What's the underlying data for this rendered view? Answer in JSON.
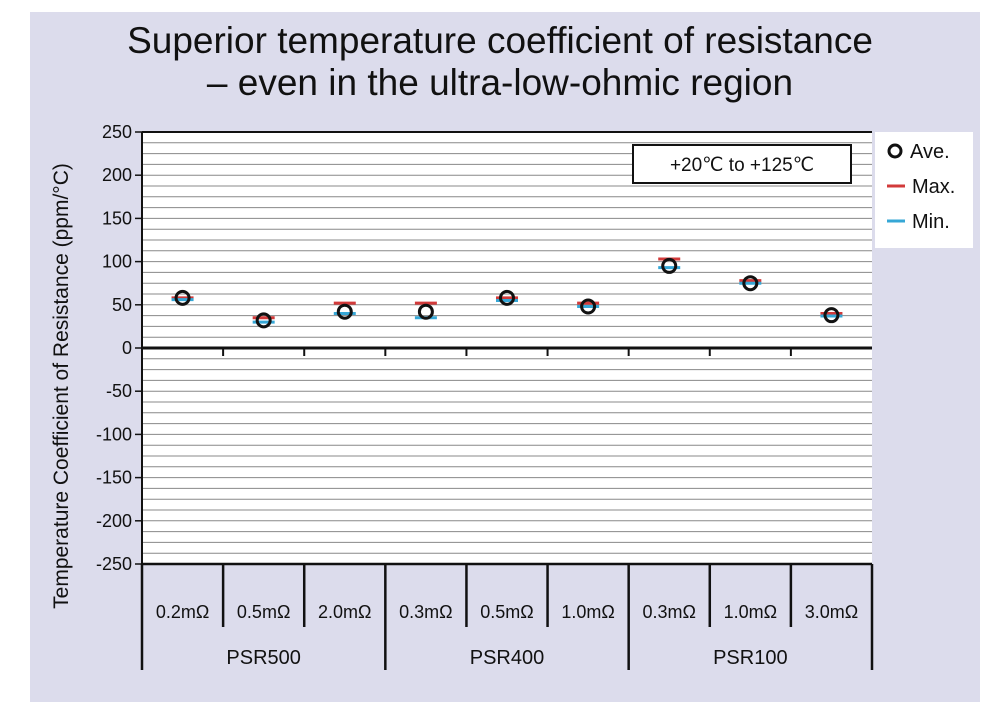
{
  "title_line1": "Superior temperature coefficient of resistance",
  "title_line2": "– even in the ultra-low-ohmic region",
  "annotation": "+20℃ to +125℃",
  "colors": {
    "background": "#dcdcec",
    "average": "#111111",
    "max": "#d23a3a",
    "min": "#36a7d6"
  },
  "chart_data": {
    "type": "scatter",
    "ylabel": "Temperature Coefficient of Resistance (ppm/°C)",
    "ylim": [
      -250,
      250
    ],
    "yticks": [
      250,
      200,
      150,
      100,
      50,
      0,
      -50,
      -100,
      -150,
      -200,
      -250
    ],
    "grid": true,
    "legend_position": "right",
    "categories": [
      "0.2mΩ",
      "0.5mΩ",
      "2.0mΩ",
      "0.3mΩ",
      "0.5mΩ",
      "1.0mΩ",
      "0.3mΩ",
      "1.0mΩ",
      "3.0mΩ"
    ],
    "groups": [
      {
        "name": "PSR500",
        "categories": [
          "0.2mΩ",
          "0.5mΩ",
          "2.0mΩ"
        ]
      },
      {
        "name": "PSR400",
        "categories": [
          "0.3mΩ",
          "0.5mΩ",
          "1.0mΩ"
        ]
      },
      {
        "name": "PSR100",
        "categories": [
          "0.3mΩ",
          "1.0mΩ",
          "3.0mΩ"
        ]
      }
    ],
    "series": [
      {
        "name": "Ave.",
        "marker": "circle",
        "values": [
          58,
          32,
          42,
          42,
          58,
          48,
          95,
          75,
          38
        ]
      },
      {
        "name": "Max.",
        "marker": "dash",
        "values": [
          58,
          35,
          52,
          52,
          58,
          52,
          103,
          78,
          40
        ]
      },
      {
        "name": "Min.",
        "marker": "dash",
        "values": [
          56,
          30,
          40,
          35,
          55,
          48,
          93,
          75,
          37
        ]
      }
    ]
  }
}
